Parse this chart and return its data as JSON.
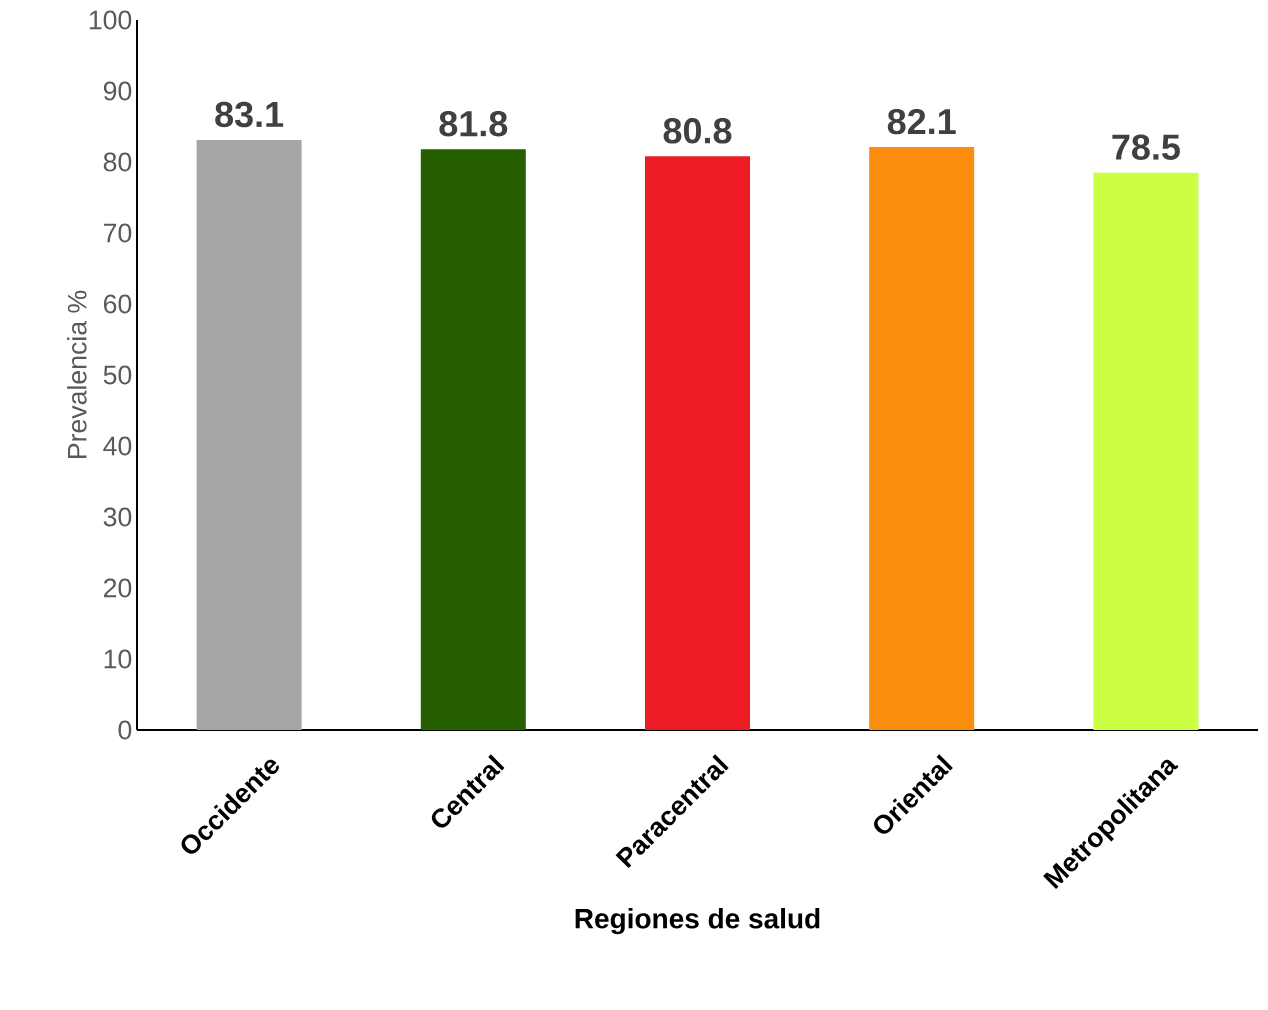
{
  "chart_data": {
    "type": "bar",
    "xlabel": "Regiones de salud",
    "ylabel": "Prevalencia %",
    "categories": [
      "Occidente",
      "Central",
      "Paracentral",
      "Oriental",
      "Metropolitana"
    ],
    "values": [
      83.1,
      81.8,
      80.8,
      82.1,
      78.5
    ],
    "colors": [
      "#a6a6a6",
      "#265e00",
      "#ed1c24",
      "#fa8c0e",
      "#ccff44"
    ],
    "ylim": [
      0,
      100
    ],
    "yticks": [
      0,
      10,
      20,
      30,
      40,
      50,
      60,
      70,
      80,
      90,
      100
    ],
    "grid": false,
    "data_labels": true
  }
}
